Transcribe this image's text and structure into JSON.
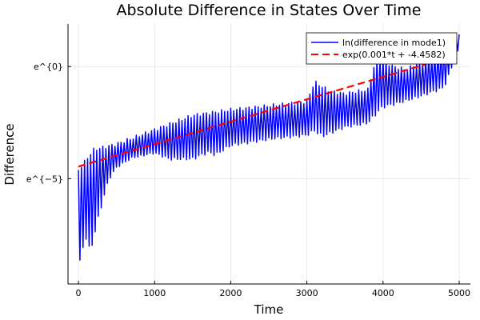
{
  "chart_data": {
    "type": "line",
    "title": "Absolute Difference in States Over Time",
    "xlabel": "Time",
    "ylabel": "Difference",
    "xlim": [
      -137,
      5147
    ],
    "ylim_ln": [
      -9.7,
      1.9
    ],
    "y_scale": "log (natural)",
    "grid": true,
    "legend_position": "top-right",
    "x_ticks": [
      {
        "value": 0,
        "label": "0"
      },
      {
        "value": 1000,
        "label": "1000"
      },
      {
        "value": 2000,
        "label": "2000"
      },
      {
        "value": 3000,
        "label": "3000"
      },
      {
        "value": 4000,
        "label": "4000"
      },
      {
        "value": 5000,
        "label": "5000"
      }
    ],
    "y_ticks": [
      {
        "value_ln": 0,
        "label": "e^{0}"
      },
      {
        "value_ln": -5,
        "label": "e^{−5}"
      }
    ],
    "series": [
      {
        "name": "ln(difference in mode1)",
        "color": "#0000ff",
        "style": "solid",
        "oscillation_period": 40,
        "upper_envelope_ln": [
          [
            0,
            -4.54
          ],
          [
            200,
            -3.64
          ],
          [
            500,
            -3.39
          ],
          [
            1000,
            -2.75
          ],
          [
            1500,
            -2.11
          ],
          [
            2000,
            -1.86
          ],
          [
            2500,
            -1.68
          ],
          [
            3000,
            -1.5
          ],
          [
            3100,
            -0.61
          ],
          [
            3300,
            -1.04
          ],
          [
            3500,
            -1.14
          ],
          [
            3800,
            -0.96
          ],
          [
            3900,
            0.29
          ],
          [
            4000,
            0.46
          ],
          [
            4100,
            0.11
          ],
          [
            4300,
            -0.07
          ],
          [
            4500,
            0.29
          ],
          [
            4800,
            0.82
          ],
          [
            5000,
            1.54
          ]
        ],
        "lower_envelope_ln": [
          [
            0,
            -9.36
          ],
          [
            50,
            -8.29
          ],
          [
            100,
            -7.75
          ],
          [
            150,
            -8.46
          ],
          [
            250,
            -7.04
          ],
          [
            300,
            -6.32
          ],
          [
            400,
            -5.07
          ],
          [
            500,
            -4.54
          ],
          [
            700,
            -4.11
          ],
          [
            1000,
            -3.89
          ],
          [
            1200,
            -4.18
          ],
          [
            1500,
            -4.18
          ],
          [
            1700,
            -3.89
          ],
          [
            1800,
            -4.0
          ],
          [
            2000,
            -3.57
          ],
          [
            2500,
            -3.29
          ],
          [
            3000,
            -3.11
          ],
          [
            3100,
            -2.93
          ],
          [
            3200,
            -3.18
          ],
          [
            3500,
            -2.75
          ],
          [
            3800,
            -2.57
          ],
          [
            3900,
            -2.21
          ],
          [
            4000,
            -1.86
          ],
          [
            4200,
            -1.68
          ],
          [
            4500,
            -1.36
          ],
          [
            4800,
            -1.0
          ],
          [
            5000,
            0.82
          ]
        ]
      },
      {
        "name": "exp(0.001*t + -4.4582)",
        "color": "#ff0000",
        "style": "dashed",
        "slope": 0.001,
        "intercept": -4.4582,
        "t_range": [
          0,
          4550
        ]
      }
    ]
  }
}
